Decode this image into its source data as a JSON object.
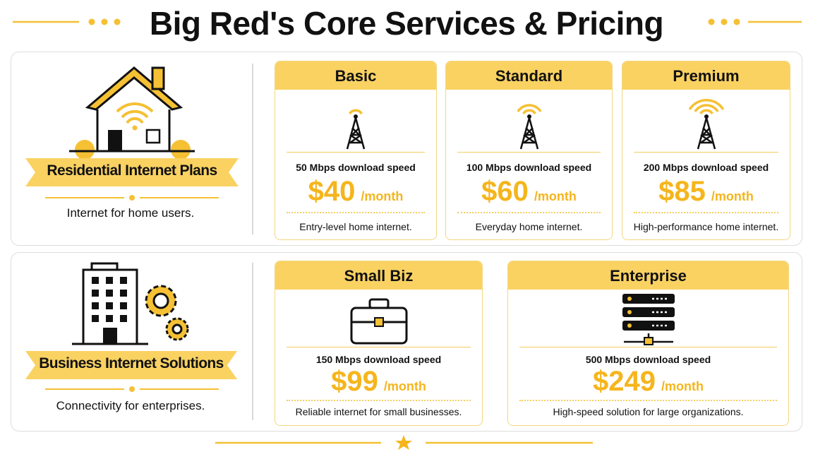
{
  "header": {
    "title": "Big Red's Core Services & Pricing"
  },
  "sections": [
    {
      "label": "Residential Internet Plans",
      "description": "Internet for home users.",
      "plans": [
        {
          "name": "Basic",
          "speed": "50 Mbps download speed",
          "price": "$40",
          "period": "/month",
          "description": "Entry-level home internet."
        },
        {
          "name": "Standard",
          "speed": "100 Mbps download speed",
          "price": "$60",
          "period": "/month",
          "description": "Everyday home internet."
        },
        {
          "name": "Premium",
          "speed": "200 Mbps download speed",
          "price": "$85",
          "period": "/month",
          "description": "High-performance home internet."
        }
      ]
    },
    {
      "label": "Business Internet Solutions",
      "description": "Connectivity for enterprises.",
      "plans": [
        {
          "name": "Small Biz",
          "speed": "150 Mbps download speed",
          "price": "$99",
          "period": "/month",
          "description": "Reliable internet for small businesses."
        },
        {
          "name": "Enterprise",
          "speed": "500 Mbps download speed",
          "price": "$249",
          "period": "/month",
          "description": "High-speed solution for large organizations."
        }
      ]
    }
  ]
}
